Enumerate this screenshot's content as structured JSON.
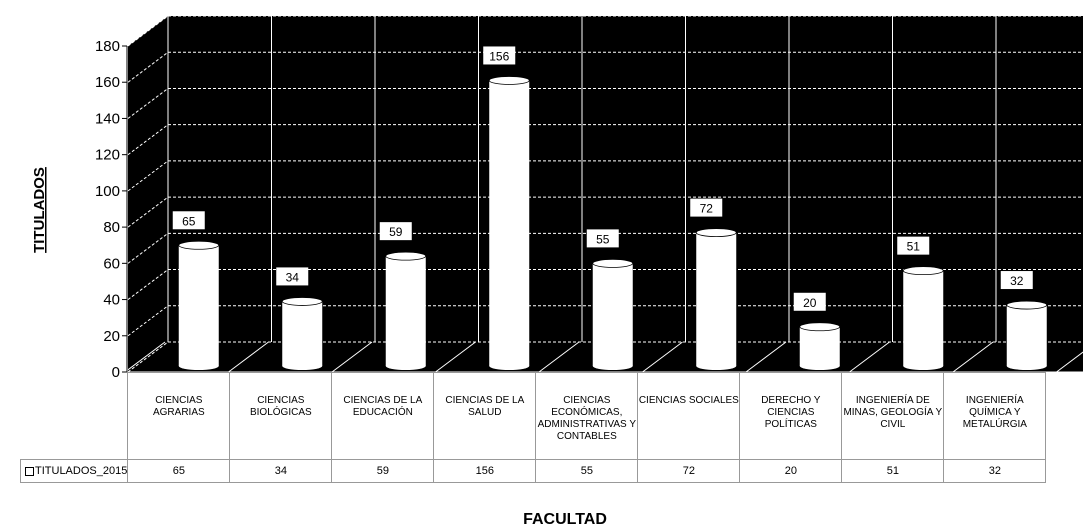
{
  "chart_data": {
    "type": "bar",
    "style": "3d-cylinder",
    "categories": [
      "CIENCIAS AGRARIAS",
      "CIENCIAS BIOLÓGICAS",
      "CIENCIAS DE LA EDUCACIÓN",
      "CIENCIAS DE LA SALUD",
      "CIENCIAS ECONÓMICAS, ADMINISTRATIVAS Y CONTABLES",
      "CIENCIAS SOCIALES",
      "DERECHO Y CIENCIAS POLÍTICAS",
      "INGENIERÍA DE MINAS, GEOLOGÍA Y CIVIL",
      "INGENIERÍA QUÍMICA Y METALÚRGIA"
    ],
    "series": [
      {
        "name": "TITULADOS_2015",
        "values": [
          65,
          34,
          59,
          156,
          55,
          72,
          20,
          51,
          32
        ]
      }
    ],
    "xlabel": "FACULTAD",
    "ylabel": "TITULADOS",
    "ylim": [
      0,
      180
    ],
    "yticks": [
      0,
      20,
      40,
      60,
      80,
      100,
      120,
      140,
      160,
      180
    ],
    "grid": true,
    "data_table": true,
    "colors": {
      "plot_background": "#000000",
      "bars": "#ffffff",
      "gridlines": "#ffffff"
    }
  }
}
